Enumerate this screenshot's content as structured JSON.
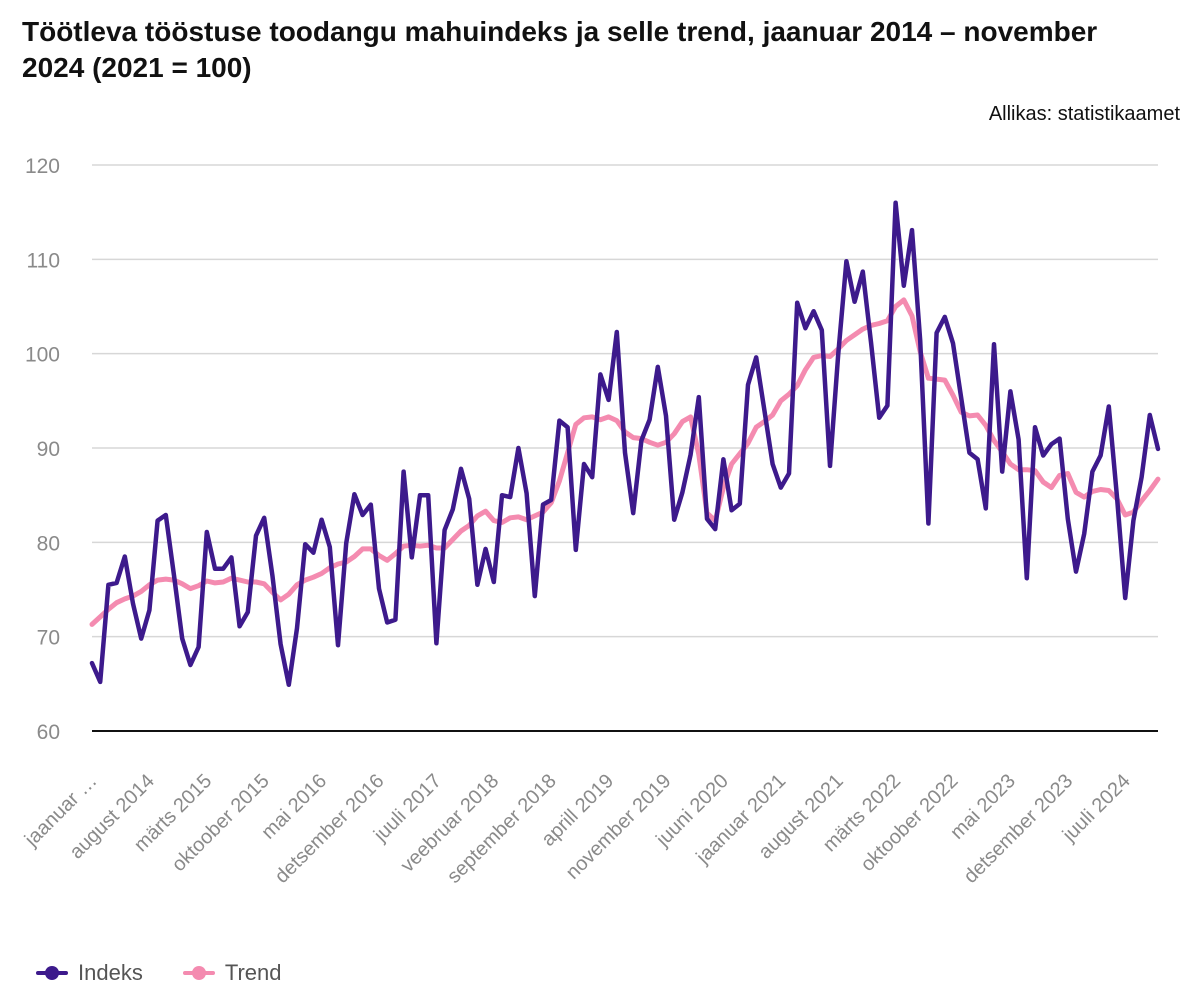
{
  "title": "Töötleva tööstuse toodangu mahuindeks ja selle trend, jaanuar 2014 – november 2024 (2021 = 100)",
  "source": "Allikas: statistikaamet",
  "chart_data": {
    "type": "line",
    "title": "Töötleva tööstuse toodangu mahuindeks ja selle trend, jaanuar 2014 – november 2024 (2021 = 100)",
    "xlabel": "",
    "ylabel": "",
    "ylim": [
      60,
      120
    ],
    "yticks": [
      60,
      70,
      80,
      90,
      100,
      110,
      120
    ],
    "grid": true,
    "legend_position": "bottom-left",
    "x_tick_labels": [
      "jaanuar …",
      "august 2014",
      "märts 2015",
      "oktoober 2015",
      "mai 2016",
      "detsember 2016",
      "juuli 2017",
      "veebruar 2018",
      "september 2018",
      "aprill 2019",
      "november 2019",
      "juuni 2020",
      "jaanuar 2021",
      "august 2021",
      "märts 2022",
      "oktoober 2022",
      "mai 2023",
      "detsember 2023",
      "juuli 2024"
    ],
    "x_tick_label_interval_months": 7,
    "x_start": "2014-01",
    "x_end": "2024-11",
    "series": [
      {
        "name": "Indeks",
        "color": "#3d1a8c",
        "values": [
          67.2,
          65.2,
          75.5,
          75.7,
          78.5,
          73.5,
          69.8,
          72.8,
          82.3,
          82.9,
          76.5,
          69.8,
          67.0,
          68.9,
          81.1,
          77.2,
          77.2,
          78.4,
          71.1,
          72.6,
          80.7,
          82.6,
          76.5,
          69.2,
          64.9,
          70.9,
          79.8,
          78.9,
          82.4,
          79.5,
          69.1,
          79.9,
          85.1,
          82.9,
          84.0,
          75.1,
          71.5,
          71.8,
          87.5,
          78.4,
          85.0,
          85.0,
          69.3,
          81.3,
          83.5,
          87.8,
          84.6,
          75.5,
          79.3,
          75.8,
          85.0,
          84.8,
          90.0,
          85.2,
          74.3,
          84.0,
          84.5,
          92.9,
          92.2,
          79.2,
          88.3,
          86.9,
          97.8,
          95.1,
          102.3,
          89.5,
          83.1,
          90.8,
          93.0,
          98.6,
          93.4,
          82.4,
          85.3,
          89.3,
          95.4,
          82.5,
          81.4,
          88.8,
          83.4,
          84.1,
          96.7,
          99.6,
          94.0,
          88.3,
          85.8,
          87.3,
          105.4,
          102.7,
          104.5,
          102.5,
          88.1,
          99.9,
          109.8,
          105.5,
          108.7,
          101.2,
          93.2,
          94.5,
          116.0,
          107.2,
          113.1,
          101.4,
          82.0,
          102.2,
          103.9,
          101.1,
          95.3,
          89.5,
          88.8,
          83.6,
          101.0,
          87.5,
          96.0,
          90.9,
          76.2,
          92.2,
          89.2,
          90.4,
          91.0,
          82.5,
          76.9,
          80.9,
          87.5,
          89.2,
          94.4,
          84.8,
          74.1,
          82.3,
          86.9,
          93.5,
          89.9
        ]
      },
      {
        "name": "Trend",
        "color": "#f48bb0",
        "values": [
          71.3,
          72.1,
          72.9,
          73.6,
          74.0,
          74.3,
          74.8,
          75.5,
          76.0,
          76.1,
          76.0,
          75.6,
          75.1,
          75.4,
          75.9,
          75.7,
          75.8,
          76.2,
          76.0,
          75.8,
          75.8,
          75.6,
          74.7,
          73.9,
          74.5,
          75.5,
          76.0,
          76.3,
          76.7,
          77.3,
          77.7,
          77.9,
          78.5,
          79.3,
          79.3,
          78.6,
          78.1,
          78.8,
          79.6,
          79.7,
          79.6,
          79.7,
          79.4,
          79.4,
          80.3,
          81.2,
          81.8,
          82.8,
          83.3,
          82.3,
          82.1,
          82.6,
          82.7,
          82.4,
          82.8,
          83.2,
          84.2,
          86.5,
          89.5,
          92.5,
          93.2,
          93.3,
          93.0,
          93.3,
          92.9,
          91.7,
          91.1,
          91.0,
          90.6,
          90.3,
          90.6,
          91.5,
          92.8,
          93.3,
          89.3,
          83.1,
          82.3,
          85.8,
          88.3,
          89.4,
          90.5,
          92.2,
          92.8,
          93.5,
          95.0,
          95.7,
          96.6,
          98.3,
          99.6,
          99.8,
          99.7,
          100.5,
          101.4,
          102.0,
          102.6,
          103.0,
          103.2,
          103.5,
          105.0,
          105.7,
          104.0,
          100.2,
          97.4,
          97.3,
          97.2,
          95.6,
          93.8,
          93.4,
          93.5,
          92.4,
          90.8,
          89.6,
          88.3,
          87.7,
          87.7,
          87.6,
          86.4,
          85.8,
          87.1,
          87.3,
          85.3,
          84.8,
          85.4,
          85.6,
          85.5,
          84.6,
          82.9,
          83.2,
          84.4,
          85.5,
          86.7
        ]
      }
    ]
  },
  "legend": {
    "items": [
      {
        "label": "Indeks",
        "color": "#3d1a8c"
      },
      {
        "label": "Trend",
        "color": "#f48bb0"
      }
    ]
  }
}
